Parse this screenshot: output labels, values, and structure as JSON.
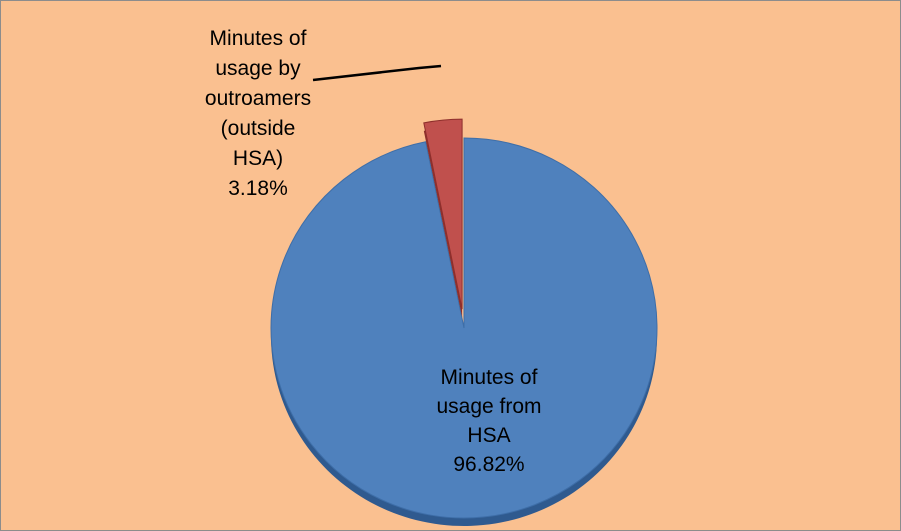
{
  "chart_data": {
    "type": "pie",
    "style": "3d-exploded",
    "start_angle_deg": -90,
    "direction": "clockwise",
    "background_color": "#FAC090",
    "slices": [
      {
        "name": "Minutes of usage from HSA",
        "value": 96.82,
        "percent_label": "96.82%",
        "label_lines": [
          "Minutes of",
          "usage from",
          "HSA",
          "96.82%"
        ],
        "color": "#4F81BD",
        "side_color": "#2F5A8F"
      },
      {
        "name": "Minutes of usage by outroamers (outside HSA)",
        "value": 3.18,
        "percent_label": "3.18%",
        "label_lines": [
          "Minutes of",
          "usage by",
          "outroamers",
          "(outside",
          "HSA)",
          "3.18%"
        ],
        "color": "#C0504D",
        "side_color": "#8E2F2C"
      }
    ]
  }
}
